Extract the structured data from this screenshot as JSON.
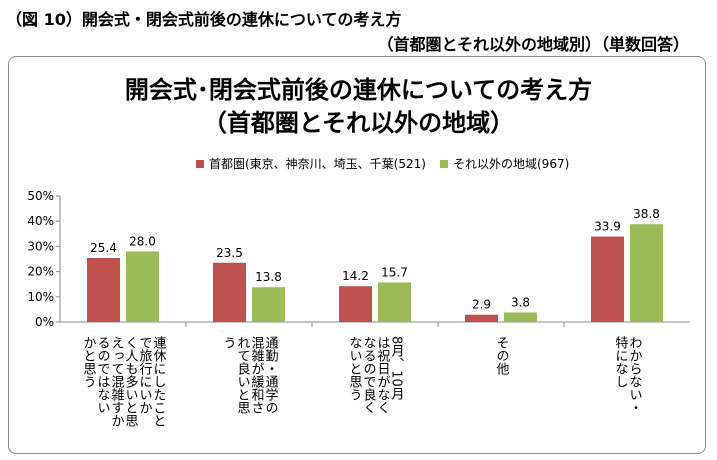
{
  "captions": {
    "line1": "（図 10）開会式・閉会式前後の連休についての考え方",
    "line2": "（首都圏とそれ以外の地域別）（単数回答）"
  },
  "chart_data": {
    "type": "bar",
    "title_line1": "開会式･閉会式前後の連休についての考え方",
    "title_line2": "（首都圏とそれ以外の地域）",
    "ylim": [
      0,
      50
    ],
    "yticks": [
      "0%",
      "10%",
      "20%",
      "30%",
      "40%",
      "50%"
    ],
    "ytick_values": [
      0,
      10,
      20,
      30,
      40,
      50
    ],
    "legend_position": "top",
    "categories": [
      [
        "連休にしたこと",
        "で旅行にいか",
        "く人も多いと思",
        "えって混雑すか",
        "るのではない",
        "かと思う"
      ],
      [
        "通勤・通学の",
        "混雑が緩和さ",
        "れて良いと思",
        "う"
      ],
      [
        "8月、10月",
        "は祝日がなく",
        "なるので良く",
        "ないと思う"
      ],
      [
        "その他"
      ],
      [
        "わからない・",
        "特になし"
      ]
    ],
    "series": [
      {
        "name": "首都圏(東京、神奈川、埼玉、千葉(521)",
        "color": "#c0504d",
        "values": [
          25.4,
          23.5,
          14.2,
          2.9,
          33.9
        ]
      },
      {
        "name": "それ以外の地域(967)",
        "color": "#9bbb59",
        "values": [
          28.0,
          13.8,
          15.7,
          3.8,
          38.8
        ]
      }
    ],
    "grid": false
  }
}
